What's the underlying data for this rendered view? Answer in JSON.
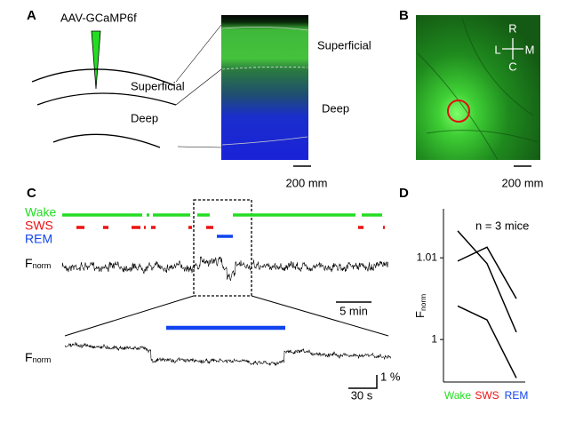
{
  "panel_labels": [
    "A",
    "B",
    "C",
    "D"
  ],
  "panel_a": {
    "construct": "AAV-GCaMP6f",
    "layer_labels": [
      "Superficial",
      "Deep"
    ],
    "image_labels": [
      "Superficial",
      "Deep"
    ],
    "scale_bar": "200 mm"
  },
  "panel_b": {
    "compass": {
      "rostral": "R",
      "lateral": "L",
      "medial": "M",
      "caudal": "C"
    },
    "scale_bar": "200 mm"
  },
  "panel_c": {
    "states": [
      {
        "name": "Wake",
        "color": "#22dd22"
      },
      {
        "name": "SWS",
        "color": "#ee1111"
      },
      {
        "name": "REM",
        "color": "#1144ee"
      }
    ],
    "y_label": "F",
    "y_label_sub": "norm",
    "time_scale": "5 min",
    "zoom_y_scale": "1 %",
    "zoom_time_scale": "30 s"
  },
  "chart_data": {
    "type": "line",
    "categories": [
      "Wake",
      "SWS",
      "REM"
    ],
    "category_colors": [
      "#22dd22",
      "#ee1111",
      "#1144ee"
    ],
    "series": [
      {
        "color": "#000000",
        "values": [
          1.0133,
          1.0093,
          1.0009
        ]
      },
      {
        "color": "#000000",
        "values": [
          1.0096,
          1.0113,
          1.005
        ]
      },
      {
        "color": "#000000",
        "values": [
          1.0041,
          1.0024,
          0.9953
        ]
      }
    ],
    "ylim": [
      0.9948,
      1.016
    ],
    "yticks": [
      1,
      1.01
    ],
    "y_label": "F",
    "y_label_sub": "norm",
    "annotation": "n = 3 mice"
  }
}
